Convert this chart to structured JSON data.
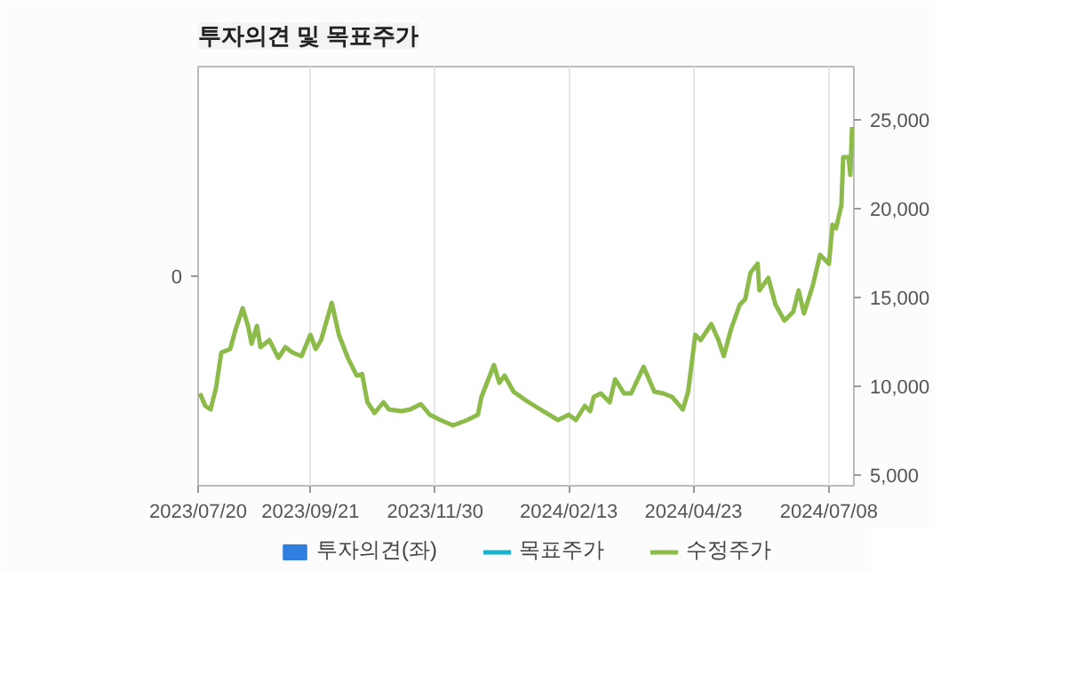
{
  "chart_data": {
    "type": "line",
    "title": "투자의견 및 목표주가",
    "annotations": [
      "0"
    ],
    "xlim": [
      "2023-07-20",
      "2024-07-22"
    ],
    "xticks": [
      {
        "value": "2023-07-20",
        "label": "2023/07/20"
      },
      {
        "value": "2023-09-21",
        "label": "2023/09/21"
      },
      {
        "value": "2023-11-30",
        "label": "2023/11/30"
      },
      {
        "value": "2024-02-13",
        "label": "2024/02/13"
      },
      {
        "value": "2024-04-23",
        "label": "2024/04/23"
      },
      {
        "value": "2024-07-08",
        "label": "2024/07/08"
      }
    ],
    "ylim": [
      4400,
      28000
    ],
    "yticks": [
      {
        "value": 5000,
        "label": "5,000"
      },
      {
        "value": 10000,
        "label": "10,000"
      },
      {
        "value": 15000,
        "label": "15,000"
      },
      {
        "value": 20000,
        "label": "20,000"
      },
      {
        "value": 25000,
        "label": "25,000"
      }
    ],
    "grid": "x",
    "legend": "bottom",
    "x": [
      "2023-07-21",
      "2023-07-24",
      "2023-07-27",
      "2023-07-30",
      "2023-08-02",
      "2023-08-07",
      "2023-08-10",
      "2023-08-14",
      "2023-08-17",
      "2023-08-19",
      "2023-08-22",
      "2023-08-24",
      "2023-08-29",
      "2023-09-03",
      "2023-09-07",
      "2023-09-11",
      "2023-09-16",
      "2023-09-21",
      "2023-09-24",
      "2023-09-27",
      "2023-10-03",
      "2023-10-07",
      "2023-10-12",
      "2023-10-17",
      "2023-10-20",
      "2023-10-23",
      "2023-10-27",
      "2023-11-01",
      "2023-11-04",
      "2023-11-11",
      "2023-11-16",
      "2023-11-22",
      "2023-11-27",
      "2023-12-03",
      "2023-12-10",
      "2023-12-18",
      "2023-12-24",
      "2023-12-26",
      "2024-01-02",
      "2024-01-05",
      "2024-01-08",
      "2024-01-13",
      "2024-01-20",
      "2024-01-28",
      "2024-02-07",
      "2024-02-13",
      "2024-02-17",
      "2024-02-22",
      "2024-02-25",
      "2024-02-27",
      "2024-03-02",
      "2024-03-07",
      "2024-03-10",
      "2024-03-15",
      "2024-03-19",
      "2024-03-26",
      "2024-03-29",
      "2024-04-01",
      "2024-04-06",
      "2024-04-11",
      "2024-04-17",
      "2024-04-20",
      "2024-04-24",
      "2024-04-27",
      "2024-05-03",
      "2024-05-07",
      "2024-05-10",
      "2024-05-14",
      "2024-05-19",
      "2024-05-22",
      "2024-05-25",
      "2024-05-29",
      "2024-05-30",
      "2024-06-04",
      "2024-06-08",
      "2024-06-13",
      "2024-06-18",
      "2024-06-21",
      "2024-06-24",
      "2024-06-29",
      "2024-07-03",
      "2024-07-08",
      "2024-07-10",
      "2024-07-12",
      "2024-07-15",
      "2024-07-16",
      "2024-07-19",
      "2024-07-20",
      "2024-07-21"
    ],
    "series": [
      {
        "name": "투자의견(좌)",
        "type": "bar",
        "color": "#2f7ee0",
        "values": [
          null,
          null,
          null,
          null,
          null,
          null,
          null,
          null,
          null,
          null,
          null,
          null,
          null,
          null,
          null,
          null,
          null,
          null,
          null,
          null,
          null,
          null,
          null,
          null,
          null,
          null,
          null,
          null,
          null,
          null,
          null,
          null,
          null,
          null,
          null,
          null,
          null,
          null,
          null,
          null,
          null,
          null,
          null,
          null,
          null,
          null,
          null,
          null,
          null,
          null,
          null,
          null,
          null,
          null,
          null,
          null,
          null,
          null,
          null,
          null,
          null,
          null,
          null,
          null,
          null,
          null,
          null,
          null,
          null,
          null,
          null,
          null,
          null,
          null,
          null,
          null,
          null,
          null,
          null,
          null,
          null,
          null,
          null,
          null,
          null,
          null,
          null,
          null,
          null
        ]
      },
      {
        "name": "목표주가",
        "type": "line",
        "color": "#17b3cc",
        "values": [
          null,
          null,
          null,
          null,
          null,
          null,
          null,
          null,
          null,
          null,
          null,
          null,
          null,
          null,
          null,
          null,
          null,
          null,
          null,
          null,
          null,
          null,
          null,
          null,
          null,
          null,
          null,
          null,
          null,
          null,
          null,
          null,
          null,
          null,
          null,
          null,
          null,
          null,
          null,
          null,
          null,
          null,
          null,
          null,
          null,
          null,
          null,
          null,
          null,
          null,
          null,
          null,
          null,
          null,
          null,
          null,
          null,
          null,
          null,
          null,
          null,
          null,
          null,
          null,
          null,
          null,
          null,
          null,
          null,
          null,
          null,
          null,
          null,
          null,
          null,
          null,
          null,
          null,
          null,
          null,
          null,
          null,
          null,
          null,
          null,
          null,
          null,
          null,
          null
        ]
      },
      {
        "name": "수정주가",
        "color": "#8dbb4a",
        "values": [
          9600,
          8900,
          8700,
          9900,
          11900,
          12100,
          13200,
          14400,
          13400,
          12400,
          13400,
          12200,
          12600,
          11600,
          12200,
          11900,
          11700,
          12900,
          12100,
          12600,
          14700,
          12900,
          11600,
          10600,
          10700,
          9100,
          8500,
          9100,
          8700,
          8600,
          8700,
          9000,
          8400,
          8100,
          7800,
          8100,
          8400,
          9400,
          11200,
          10200,
          10600,
          9700,
          9200,
          8700,
          8100,
          8400,
          8100,
          8900,
          8600,
          9400,
          9600,
          9100,
          10400,
          9600,
          9600,
          11100,
          10400,
          9700,
          9600,
          9400,
          8700,
          9700,
          12900,
          12600,
          13500,
          12600,
          11700,
          13200,
          14600,
          14900,
          16400,
          16900,
          15400,
          16100,
          14600,
          13700,
          14200,
          15400,
          14100,
          15700,
          17400,
          16900,
          19100,
          18900,
          20200,
          22900,
          22900,
          21900,
          24600
        ]
      }
    ]
  }
}
